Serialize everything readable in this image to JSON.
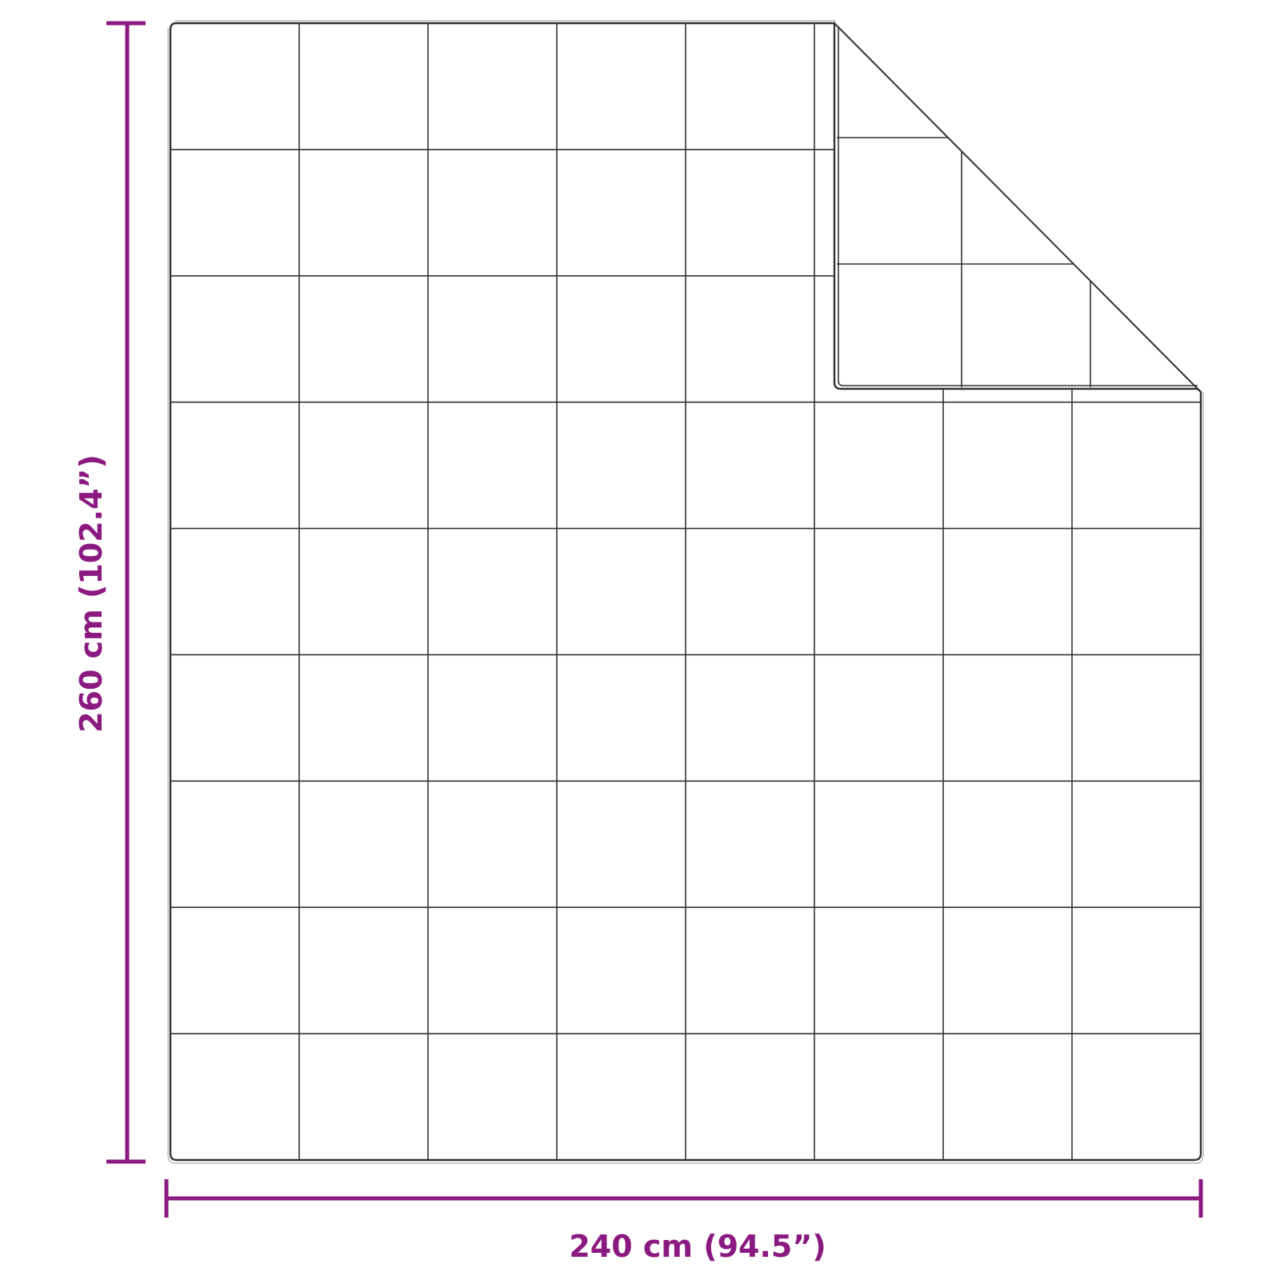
{
  "dimensions": {
    "width_label": "240 cm (94.5”)",
    "height_label": "260 cm (102.4”)"
  },
  "colors": {
    "dimension": "#8b1a80",
    "outline": "#333333"
  },
  "quilt": {
    "grid_columns": 8,
    "grid_rows": 9,
    "folded_corner": "top-right"
  }
}
